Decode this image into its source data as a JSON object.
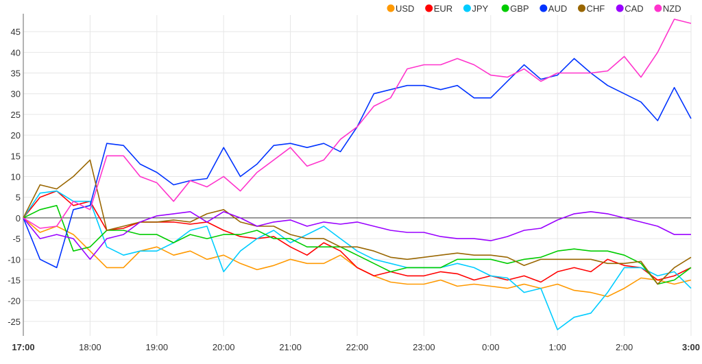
{
  "chart_data": {
    "type": "line",
    "title": "",
    "xlabel": "",
    "ylabel": "",
    "x_tick_labels": [
      "17:00",
      "18:00",
      "19:00",
      "20:00",
      "21:00",
      "22:00",
      "23:00",
      "0:00",
      "1:00",
      "2:00",
      "3:00"
    ],
    "x_bold_ticks": [
      "17:00",
      "3:00"
    ],
    "x_interval_minutes": 15,
    "y_ticks": [
      -25,
      -20,
      -15,
      -10,
      -5,
      0,
      5,
      10,
      15,
      20,
      25,
      30,
      35,
      40,
      45
    ],
    "ylim": [
      -28.5,
      49
    ],
    "grid": true,
    "zero_line": true,
    "legend_position": "top-right",
    "series": [
      {
        "name": "USD",
        "color": "#ff9900",
        "values": [
          0,
          -3.5,
          -2,
          -4,
          -8,
          -12,
          -12,
          -8,
          -7,
          -9,
          -8,
          -10,
          -9,
          -11,
          -12.5,
          -11.5,
          -10,
          -11,
          -11,
          -9,
          -12,
          -14,
          -15.5,
          -16,
          -16,
          -15,
          -16.5,
          -16,
          -16.5,
          -17,
          -16,
          -17,
          -16,
          -17.5,
          -18,
          -19,
          -17,
          -14.5,
          -15,
          -16,
          -15
        ]
      },
      {
        "name": "EUR",
        "color": "#ff0000",
        "values": [
          0,
          5,
          6.5,
          3,
          4,
          -3,
          -2.5,
          -1,
          -1,
          -1,
          -1.5,
          -1,
          -3,
          -4.5,
          -5,
          -4.5,
          -7,
          -9,
          -6,
          -8,
          -12,
          -14,
          -13,
          -14,
          -14,
          -13,
          -13.5,
          -15,
          -14,
          -15,
          -14,
          -15.5,
          -13,
          -12,
          -13,
          -10,
          -11.5,
          -12,
          -15,
          -14,
          -12
        ]
      },
      {
        "name": "JPY",
        "color": "#00ccff",
        "values": [
          0,
          6,
          6.5,
          4,
          4,
          -7,
          -9,
          -8,
          -8,
          -6,
          -3,
          -2,
          -13,
          -8,
          -5,
          -3,
          -6,
          -4,
          -2,
          -5,
          -8,
          -10,
          -11,
          -12,
          -12,
          -12,
          -11,
          -12,
          -14,
          -14.5,
          -18,
          -17,
          -27,
          -24,
          -23,
          -18,
          -12,
          -12,
          -14,
          -13,
          -17
        ]
      },
      {
        "name": "GBP",
        "color": "#00cc00",
        "values": [
          0,
          2,
          3,
          -8,
          -7,
          -3,
          -3,
          -4,
          -4,
          -6,
          -4,
          -5,
          -4,
          -4,
          -3,
          -5,
          -5,
          -7,
          -7,
          -7,
          -9,
          -11,
          -13,
          -12,
          -12,
          -12,
          -10,
          -10,
          -10,
          -11,
          -10,
          -9.5,
          -8,
          -7.5,
          -8,
          -8,
          -9,
          -11,
          -16,
          -15,
          -12
        ]
      },
      {
        "name": "AUD",
        "color": "#0033ff",
        "values": [
          0,
          -10,
          -12,
          2,
          3,
          18,
          17.5,
          13,
          11,
          8,
          9,
          9.5,
          17,
          10,
          13,
          17.5,
          18,
          17,
          18,
          16,
          22,
          30,
          31,
          32,
          32,
          31,
          32,
          29,
          29,
          33,
          37,
          33.5,
          34.5,
          38.5,
          35,
          32,
          30,
          28,
          23.5,
          31.5,
          24
        ]
      },
      {
        "name": "CHF",
        "color": "#996600",
        "values": [
          0,
          8,
          7,
          10,
          14,
          -3,
          -2,
          -1,
          -1,
          -0.5,
          -1,
          1,
          2,
          -1,
          -2,
          -2,
          -4,
          -5,
          -5,
          -7,
          -7,
          -8,
          -9.5,
          -10,
          -9.5,
          -9,
          -8.5,
          -9,
          -9,
          -9.5,
          -11.5,
          -10,
          -10,
          -10,
          -10,
          -11,
          -11,
          -10.5,
          -16,
          -12,
          -9.5
        ]
      },
      {
        "name": "CAD",
        "color": "#9900ff",
        "values": [
          0,
          -5,
          -4,
          -5,
          -10,
          -5,
          -4,
          -1,
          0.5,
          1,
          1.5,
          -1,
          1.5,
          0,
          -2,
          -1,
          -0.5,
          -2,
          -1,
          -1.5,
          -1,
          -2,
          -3,
          -3.5,
          -3.5,
          -4.5,
          -5,
          -5,
          -5.5,
          -4.5,
          -3,
          -2.5,
          -0.5,
          1,
          1.5,
          1,
          0,
          -1,
          -2,
          -4,
          -4
        ]
      },
      {
        "name": "NZD",
        "color": "#ff33cc",
        "values": [
          0,
          -2.5,
          -2,
          4,
          2,
          15,
          15,
          10,
          8.5,
          4,
          9,
          7.5,
          10,
          6.5,
          11,
          14,
          17,
          12.5,
          14,
          19,
          22,
          27,
          29,
          36,
          37,
          37,
          38.5,
          37,
          34.5,
          34,
          36,
          33,
          35,
          35,
          35,
          35.5,
          39,
          34,
          40,
          48,
          47
        ]
      }
    ]
  }
}
